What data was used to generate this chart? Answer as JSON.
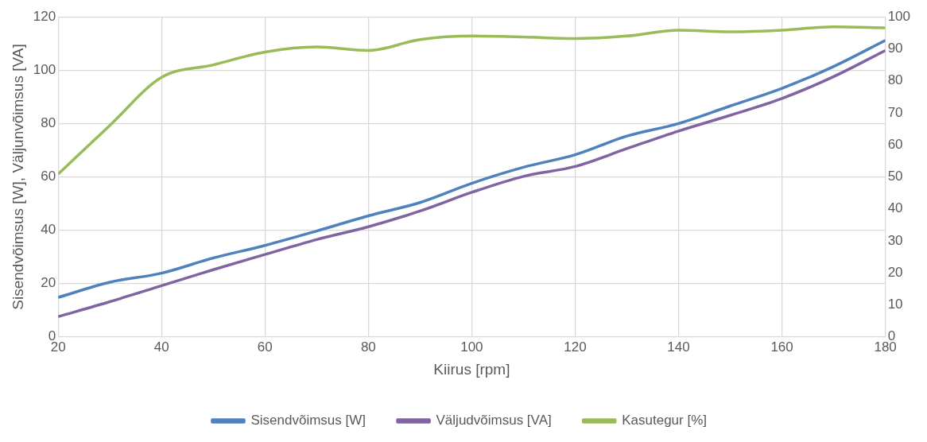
{
  "chart_data": {
    "type": "line",
    "xlabel": "Kiirus [rpm]",
    "ylabel": "Sisendvõimsus [W], Väljunvõimsus [VA]",
    "x": [
      20,
      30,
      40,
      50,
      60,
      70,
      80,
      90,
      100,
      110,
      120,
      130,
      140,
      150,
      160,
      170,
      180
    ],
    "series": [
      {
        "name": "Sisendvõimsus [W]",
        "color": "#4f81bd",
        "values": [
          14.8,
          20.5,
          23.9,
          29.6,
          34.3,
          39.7,
          45.4,
          50.4,
          57.6,
          63.6,
          68.3,
          75.3,
          80,
          86.6,
          93.2,
          101.4,
          111.2
        ]
      },
      {
        "name": "Väljudvõimsus [VA]",
        "color": "#8064a2",
        "values": [
          7.6,
          13.2,
          19.2,
          25.2,
          30.9,
          36.5,
          41.3,
          47.2,
          54.2,
          60.2,
          63.9,
          70.6,
          77.2,
          83.1,
          89.4,
          97.6,
          107.4
        ]
      },
      {
        "name": "Kasutegur [%]",
        "color": "#9bbb59",
        "axis": "y2",
        "values": [
          50.9,
          66.1,
          81.1,
          85,
          89,
          90.6,
          89.5,
          92.9,
          94,
          93.7,
          93.2,
          94,
          95.8,
          95.3,
          95.8,
          96.9,
          96.6
        ]
      }
    ],
    "xlim": [
      20,
      180
    ],
    "xticks": [
      20,
      40,
      60,
      80,
      100,
      120,
      140,
      160,
      180
    ],
    "ylim": [
      0,
      120
    ],
    "yticks": [
      0,
      20,
      40,
      60,
      80,
      100,
      120
    ],
    "y2lim": [
      0,
      100
    ],
    "y2ticks": [
      0,
      10,
      20,
      30,
      40,
      50,
      60,
      70,
      80,
      90,
      100
    ],
    "grid": true,
    "legend": "bottom",
    "marker": "none",
    "line_style": "solid"
  }
}
